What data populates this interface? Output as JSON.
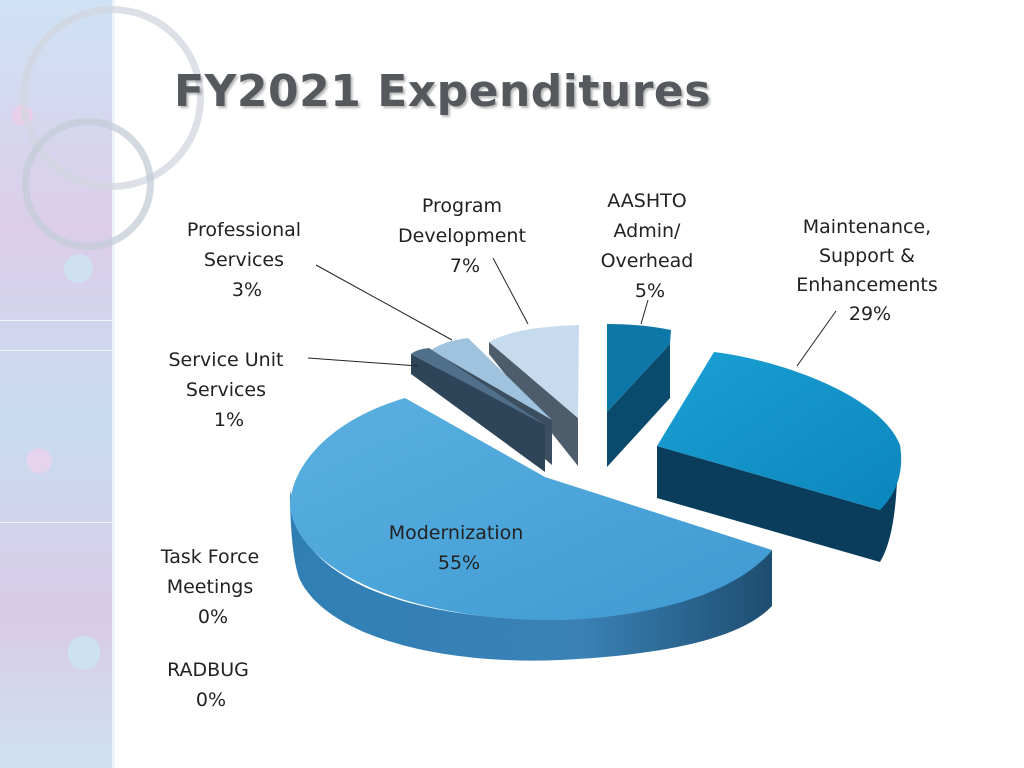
{
  "slide": {
    "title": "FY2021 Expenditures"
  },
  "chart_data": {
    "type": "pie",
    "style": "3d exploded",
    "slices": [
      {
        "name": "Modernization",
        "value": 55,
        "label": "55%",
        "color": "#4da6d9"
      },
      {
        "name": "Task Force Meetings",
        "value": 0,
        "label": "0%",
        "color": "#9cc7e6"
      },
      {
        "name": "RADBUG",
        "value": 0,
        "label": "0%",
        "color": "#6fa0c8"
      },
      {
        "name": "Service Unit Services",
        "value": 1,
        "label": "1%",
        "color": "#4f6f8a"
      },
      {
        "name": "Professional Services",
        "value": 3,
        "label": "3%",
        "color": "#9fc3de"
      },
      {
        "name": "Program Development",
        "value": 7,
        "label": "7%",
        "color": "#c7dbee"
      },
      {
        "name": "AASHTO Admin/ Overhead",
        "value": 5,
        "label": "5%",
        "color": "#0d77a8"
      },
      {
        "name": "Maintenance, Support & Enhancements",
        "value": 29,
        "label": "29%",
        "color": "#1692c4"
      }
    ],
    "labels": {
      "modernization": {
        "line1": "Modernization",
        "line2": "55%"
      },
      "task_force": {
        "line1": "Task Force",
        "line2": "Meetings",
        "line3": "0%"
      },
      "radbug": {
        "line1": "RADBUG",
        "line2": "0%"
      },
      "service_unit": {
        "line1": "Service Unit",
        "line2": "Services",
        "line3": "1%"
      },
      "professional": {
        "line1": "Professional",
        "line2": "Services",
        "line3": "3%"
      },
      "program_dev": {
        "line1": "Program",
        "line2": "Development",
        "line3": "7%"
      },
      "aashto": {
        "line1": "AASHTO",
        "line2": "Admin/",
        "line3": "Overhead",
        "line4": "5%"
      },
      "maintenance": {
        "line1": "Maintenance,",
        "line2": "Support &",
        "line3": "Enhancements",
        "line4": "29%"
      }
    }
  }
}
